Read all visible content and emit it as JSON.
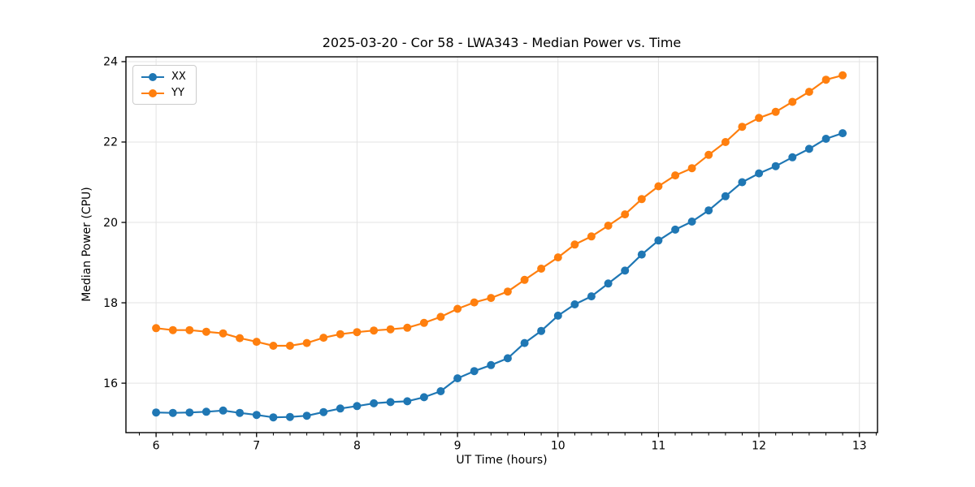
{
  "figure": {
    "background": "#ffffff",
    "spine_color": "#000000",
    "grid_color": "#e3e3e3",
    "tick_font_px": 14
  },
  "chart_data": {
    "type": "line",
    "title": "2025-03-20 - Cor 58 - LWA343 - Median Power vs. Time",
    "xlabel": "UT Time (hours)",
    "ylabel": "Median Power (CPU)",
    "xlim": [
      5.7,
      13.18
    ],
    "ylim": [
      14.77,
      24.12
    ],
    "x_ticks": [
      6,
      7,
      8,
      9,
      10,
      11,
      12,
      13
    ],
    "y_ticks": [
      16,
      18,
      20,
      22,
      24
    ],
    "x_minor_step_hours": 0.1667,
    "grid": "major-only",
    "legend_position": "upper-left",
    "marker": "circle",
    "x": [
      6.0,
      6.167,
      6.333,
      6.5,
      6.667,
      6.833,
      7.0,
      7.167,
      7.333,
      7.5,
      7.667,
      7.833,
      8.0,
      8.167,
      8.333,
      8.5,
      8.667,
      8.833,
      9.0,
      9.167,
      9.333,
      9.5,
      9.667,
      9.833,
      10.0,
      10.167,
      10.333,
      10.5,
      10.667,
      10.833,
      11.0,
      11.167,
      11.333,
      11.5,
      11.667,
      11.833,
      12.0,
      12.167,
      12.333,
      12.5,
      12.667,
      12.833
    ],
    "series": [
      {
        "name": "XX",
        "color": "#1f77b4",
        "values": [
          15.27,
          15.26,
          15.27,
          15.29,
          15.32,
          15.26,
          15.21,
          15.15,
          15.16,
          15.19,
          15.28,
          15.37,
          15.43,
          15.5,
          15.53,
          15.55,
          15.65,
          15.8,
          16.12,
          16.3,
          16.45,
          16.62,
          17.0,
          17.3,
          17.68,
          17.96,
          18.16,
          18.48,
          18.8,
          19.2,
          19.55,
          19.82,
          20.02,
          20.3,
          20.65,
          21.0,
          21.22,
          21.4,
          21.62,
          21.83,
          22.08,
          22.22
        ]
      },
      {
        "name": "YY",
        "color": "#ff7f0e",
        "values": [
          17.37,
          17.32,
          17.32,
          17.28,
          17.24,
          17.12,
          17.03,
          16.93,
          16.93,
          17.0,
          17.13,
          17.22,
          17.27,
          17.31,
          17.34,
          17.38,
          17.5,
          17.65,
          17.85,
          18.01,
          18.12,
          18.28,
          18.57,
          18.85,
          19.13,
          19.45,
          19.65,
          19.92,
          20.2,
          20.58,
          20.9,
          21.17,
          21.35,
          21.68,
          22.0,
          22.38,
          22.6,
          22.75,
          23.0,
          23.25,
          23.55,
          23.66
        ]
      }
    ]
  }
}
